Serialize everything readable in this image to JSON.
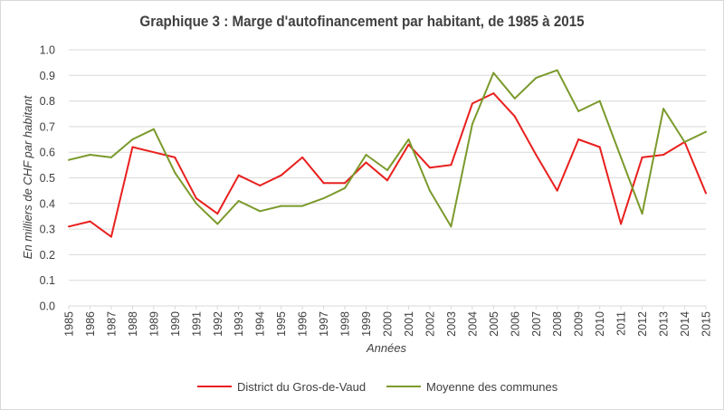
{
  "colors": {
    "district": "#e8201e",
    "moyenne": "#7b9a2c",
    "grid": "#d9d9d9",
    "text": "#404040"
  },
  "chart_data": {
    "type": "line",
    "title": "Graphique 3 : Marge d'autofinancement par habitant, de 1985 à 2015",
    "xlabel": "Années",
    "ylabel": "En milliers de CHF par habitant",
    "ylim": [
      0,
      1
    ],
    "yticks": [
      "0.0",
      "0.1",
      "0.2",
      "0.3",
      "0.4",
      "0.5",
      "0.6",
      "0.7",
      "0.8",
      "0.9",
      "1.0"
    ],
    "grid": true,
    "legend_position": "bottom",
    "categories": [
      "1985",
      "1986",
      "1987",
      "1988",
      "1989",
      "1990",
      "1991",
      "1992",
      "1993",
      "1994",
      "1995",
      "1996",
      "1997",
      "1998",
      "1999",
      "2000",
      "2001",
      "2002",
      "2003",
      "2004",
      "2005",
      "2006",
      "2007",
      "2008",
      "2009",
      "2010",
      "2011",
      "2012",
      "2013",
      "2014",
      "2015"
    ],
    "series": [
      {
        "name": "District du Gros-de-Vaud",
        "color": "#e8201e",
        "values": [
          0.31,
          0.33,
          0.27,
          0.62,
          0.6,
          0.58,
          0.42,
          0.36,
          0.51,
          0.47,
          0.51,
          0.58,
          0.48,
          0.48,
          0.56,
          0.49,
          0.63,
          0.54,
          0.55,
          0.79,
          0.83,
          0.74,
          0.59,
          0.45,
          0.65,
          0.62,
          0.32,
          0.58,
          0.59,
          0.64,
          0.44
        ]
      },
      {
        "name": "Moyenne des communes",
        "color": "#7b9a2c",
        "values": [
          0.57,
          0.59,
          0.58,
          0.65,
          0.69,
          0.52,
          0.4,
          0.32,
          0.41,
          0.37,
          0.39,
          0.39,
          0.42,
          0.46,
          0.59,
          0.53,
          0.65,
          0.45,
          0.31,
          0.71,
          0.91,
          0.81,
          0.89,
          0.92,
          0.76,
          0.8,
          0.58,
          0.36,
          0.77,
          0.64,
          0.68
        ]
      }
    ]
  }
}
